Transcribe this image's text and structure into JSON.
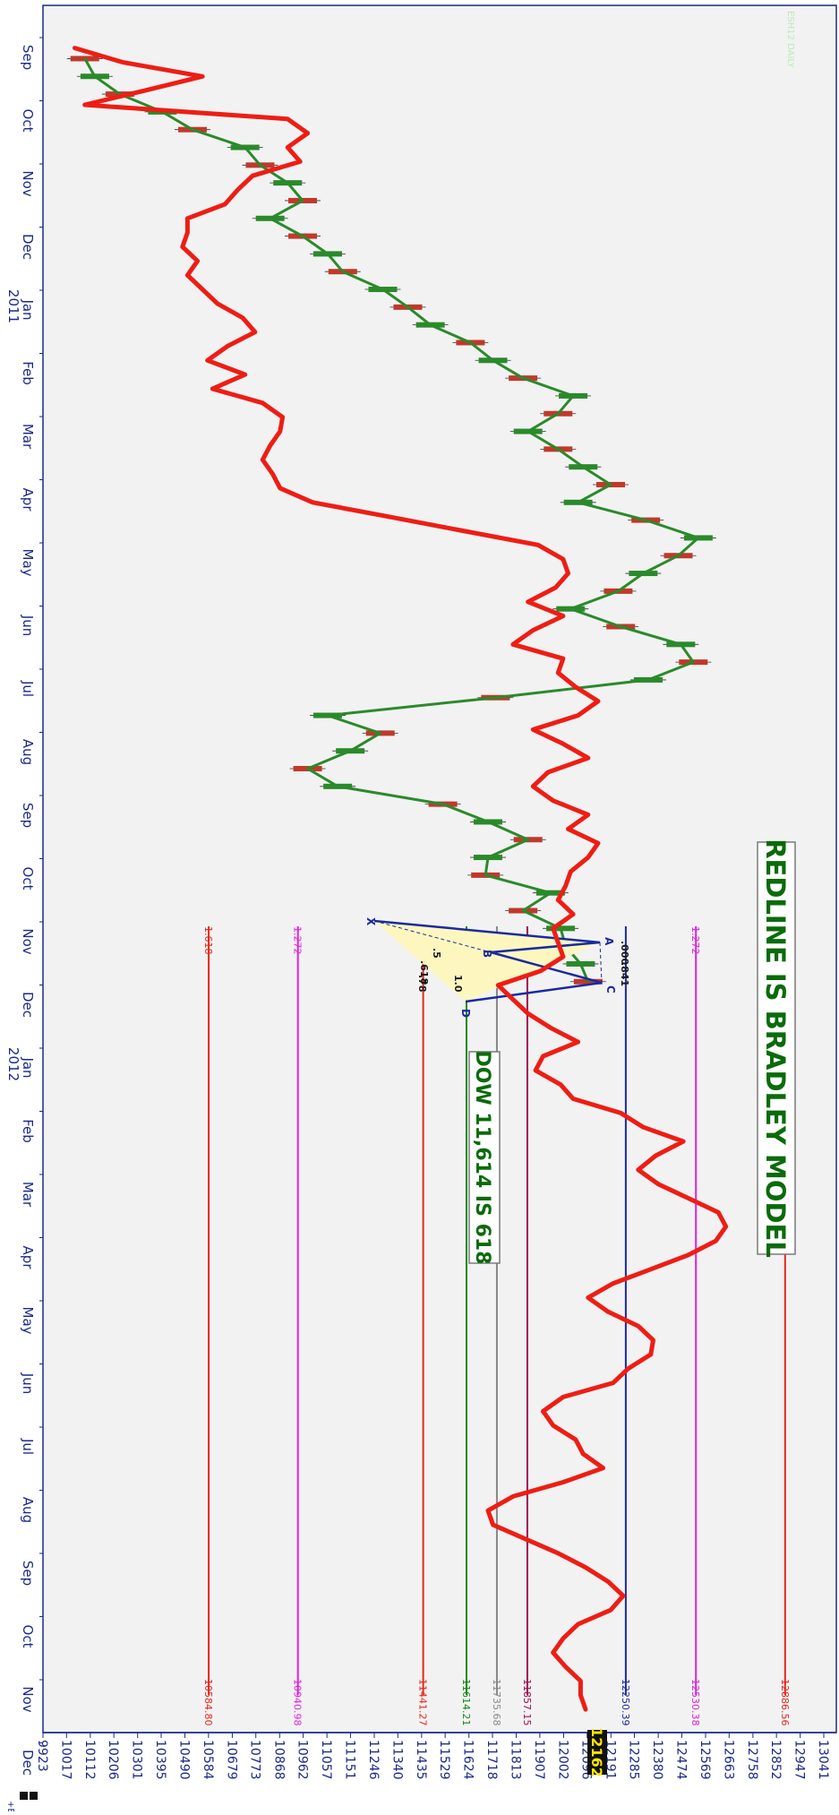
{
  "chart_data": {
    "type": "line",
    "title": "",
    "xlabel": "",
    "ylabel": "",
    "months": [
      {
        "label": "Sep",
        "year": ""
      },
      {
        "label": "Oct",
        "year": ""
      },
      {
        "label": "Nov",
        "year": ""
      },
      {
        "label": "Dec",
        "year": ""
      },
      {
        "label": "Jan",
        "year": "2011"
      },
      {
        "label": "Feb",
        "year": ""
      },
      {
        "label": "Mar",
        "year": ""
      },
      {
        "label": "Apr",
        "year": ""
      },
      {
        "label": "May",
        "year": ""
      },
      {
        "label": "Jun",
        "year": ""
      },
      {
        "label": "Jul",
        "year": ""
      },
      {
        "label": "Aug",
        "year": ""
      },
      {
        "label": "Sep",
        "year": ""
      },
      {
        "label": "Oct",
        "year": ""
      },
      {
        "label": "Nov",
        "year": ""
      },
      {
        "label": "Dec",
        "year": ""
      },
      {
        "label": "Jan",
        "year": "2012"
      },
      {
        "label": "Feb",
        "year": ""
      },
      {
        "label": "Mar",
        "year": ""
      },
      {
        "label": "Apr",
        "year": ""
      },
      {
        "label": "May",
        "year": ""
      },
      {
        "label": "Jun",
        "year": ""
      },
      {
        "label": "Jul",
        "year": ""
      },
      {
        "label": "Aug",
        "year": ""
      },
      {
        "label": "Sep",
        "year": ""
      },
      {
        "label": "Oct",
        "year": ""
      },
      {
        "label": "Nov",
        "year": ""
      },
      {
        "label": "Dec",
        "year": ""
      }
    ],
    "price_ticks": [
      9923,
      10017,
      10112,
      10206,
      10301,
      10395,
      10490,
      10584,
      10679,
      10773,
      10868,
      10962,
      11057,
      11151,
      11246,
      11340,
      11435,
      11529,
      11624,
      11718,
      11813,
      11907,
      12002,
      12096,
      12191,
      12285,
      12380,
      12474,
      12569,
      12663,
      12758,
      12852,
      12947,
      13041
    ],
    "ylim": [
      9923,
      13041
    ],
    "current_price_label": "12162",
    "symbol_label": "+ES",
    "corner_label": "ESH12 DAILY",
    "annotations": [
      {
        "text": "REDLINE IS BRADLEY MODEL",
        "color": "#0a6b0a"
      },
      {
        "text": "DOW 11,614 IS 618",
        "color": "#0a6b0a"
      }
    ],
    "pattern_labels": [
      "X",
      "A",
      "B",
      "C",
      "D",
      ".000",
      ".841",
      ".618",
      ".5",
      ".78",
      "1.0"
    ],
    "levels": [
      {
        "ratio": "1.618",
        "value": "10584.80",
        "price": 10584.8,
        "color": "#e8261c"
      },
      {
        "ratio": "1.272",
        "value": "10940.98",
        "price": 10941,
        "color": "#e020e0"
      },
      {
        "ratio": "",
        "value": "11441.27",
        "price": 11441.3,
        "color": "#e8261c"
      },
      {
        "ratio": "",
        "value": "11614.21",
        "price": 11614.2,
        "color": "#1a8a1a"
      },
      {
        "ratio": "",
        "value": "11735.68",
        "price": 11735.7,
        "color": "#888888"
      },
      {
        "ratio": "",
        "value": "11857.15",
        "price": 11857.2,
        "color": "#a01050"
      },
      {
        "ratio": "",
        "value": "12250.39",
        "price": 12250.4,
        "color": "#1a2aa0"
      },
      {
        "ratio": "1.272",
        "value": "12530.38",
        "price": 12530.4,
        "color": "#e020e0"
      },
      {
        "ratio": "",
        "value": "12886.56",
        "price": 12886.6,
        "color": "#e8261c"
      }
    ],
    "series": [
      {
        "name": "",
        "kind": "price",
        "color": "#2a8a2a",
        "x": [
          2010.655,
          2010.68,
          2010.705,
          2010.73,
          2010.755,
          2010.78,
          2010.805,
          2010.83,
          2010.855,
          2010.88,
          2010.905,
          2010.93,
          2010.955,
          2010.98,
          2011.005,
          2011.03,
          2011.055,
          2011.08,
          2011.105,
          2011.13,
          2011.155,
          2011.18,
          2011.205,
          2011.23,
          2011.255,
          2011.28,
          2011.305,
          2011.33,
          2011.355,
          2011.38,
          2011.405,
          2011.43,
          2011.455,
          2011.48,
          2011.505,
          2011.53,
          2011.555,
          2011.58,
          2011.605,
          2011.63,
          2011.655,
          2011.68,
          2011.705,
          2011.73,
          2011.755,
          2011.78,
          2011.805,
          2011.83,
          2011.855,
          2011.88,
          2011.905,
          2011.93,
          2011.955
        ],
        "values": [
          10090,
          10130,
          10230,
          10400,
          10520,
          10730,
          10790,
          10900,
          10960,
          10830,
          10960,
          11060,
          11120,
          11280,
          11380,
          11470,
          11630,
          11720,
          11840,
          12040,
          11980,
          11860,
          11980,
          12080,
          12190,
          12060,
          12330,
          12540,
          12460,
          12320,
          12220,
          12030,
          12230,
          12470,
          12520,
          12340,
          11730,
          11060,
          11270,
          11150,
          10980,
          11100,
          11520,
          11700,
          11860,
          11700,
          11690,
          11950,
          11840,
          11990,
          12010,
          12070,
          12100
        ]
      },
      {
        "name": "",
        "kind": "bradley",
        "color": "#ee1d14",
        "x": [
          2010.64,
          2010.66,
          2010.68,
          2010.7,
          2010.72,
          2010.74,
          2010.76,
          2010.78,
          2010.8,
          2010.82,
          2010.84,
          2010.86,
          2010.88,
          2010.9,
          2010.92,
          2010.94,
          2010.96,
          2010.98,
          2011.0,
          2011.02,
          2011.04,
          2011.06,
          2011.08,
          2011.1,
          2011.12,
          2011.14,
          2011.16,
          2011.18,
          2011.2,
          2011.22,
          2011.24,
          2011.26,
          2011.28,
          2011.3,
          2011.32,
          2011.34,
          2011.36,
          2011.38,
          2011.4,
          2011.42,
          2011.44,
          2011.46,
          2011.48,
          2011.5,
          2011.52,
          2011.54,
          2011.56,
          2011.58,
          2011.6,
          2011.62,
          2011.64,
          2011.66,
          2011.68,
          2011.7,
          2011.72,
          2011.74,
          2011.76,
          2011.78,
          2011.8,
          2011.82,
          2011.84,
          2011.86,
          2011.88,
          2011.9,
          2011.92,
          2011.94,
          2011.96,
          2011.98,
          2012.0,
          2012.02,
          2012.04,
          2012.06,
          2012.08,
          2012.1,
          2012.12,
          2012.14,
          2012.16,
          2012.18,
          2012.2,
          2012.22,
          2012.24,
          2012.26,
          2012.28,
          2012.3,
          2012.32,
          2012.34,
          2012.36,
          2012.38,
          2012.4,
          2012.42,
          2012.44,
          2012.46,
          2012.48,
          2012.5,
          2012.52,
          2012.54,
          2012.56,
          2012.58,
          2012.6,
          2012.62,
          2012.64,
          2012.66,
          2012.68,
          2012.7,
          2012.72,
          2012.74,
          2012.76,
          2012.78,
          2012.8,
          2012.82,
          2012.84,
          2012.86,
          2012.88,
          2012.9,
          2012.92,
          2012.94,
          2012.96,
          2012.98
        ],
        "values": [
          10050,
          10240,
          10560,
          10330,
          10090,
          10900,
          10980,
          10900,
          10950,
          10760,
          10700,
          10650,
          10500,
          10500,
          10480,
          10540,
          10500,
          10560,
          10620,
          10720,
          10770,
          10660,
          10580,
          10730,
          10600,
          10800,
          10880,
          10870,
          10830,
          10800,
          10840,
          10870,
          11000,
          11300,
          11600,
          11900,
          12000,
          12020,
          11970,
          11860,
          12000,
          11880,
          11800,
          12000,
          11980,
          12050,
          12140,
          12060,
          11880,
          12000,
          12100,
          11940,
          11880,
          11960,
          12100,
          12020,
          12140,
          12100,
          12030,
          12010,
          11980,
          12040,
          11960,
          11980,
          12000,
          11910,
          11740,
          11800,
          11860,
          11950,
          12060,
          11920,
          11890,
          11990,
          12040,
          12230,
          12320,
          12480,
          12370,
          12300,
          12380,
          12500,
          12620,
          12650,
          12610,
          12500,
          12350,
          12200,
          12100,
          12180,
          12300,
          12360,
          12350,
          12260,
          12200,
          12000,
          11920,
          11960,
          12050,
          12080,
          12160,
          12000,
          11800,
          11700,
          11720,
          11850,
          11980,
          12090,
          12180,
          12240,
          12190,
          12060,
          12000,
          11960,
          12010,
          12070,
          12070,
          12090
        ]
      }
    ]
  }
}
